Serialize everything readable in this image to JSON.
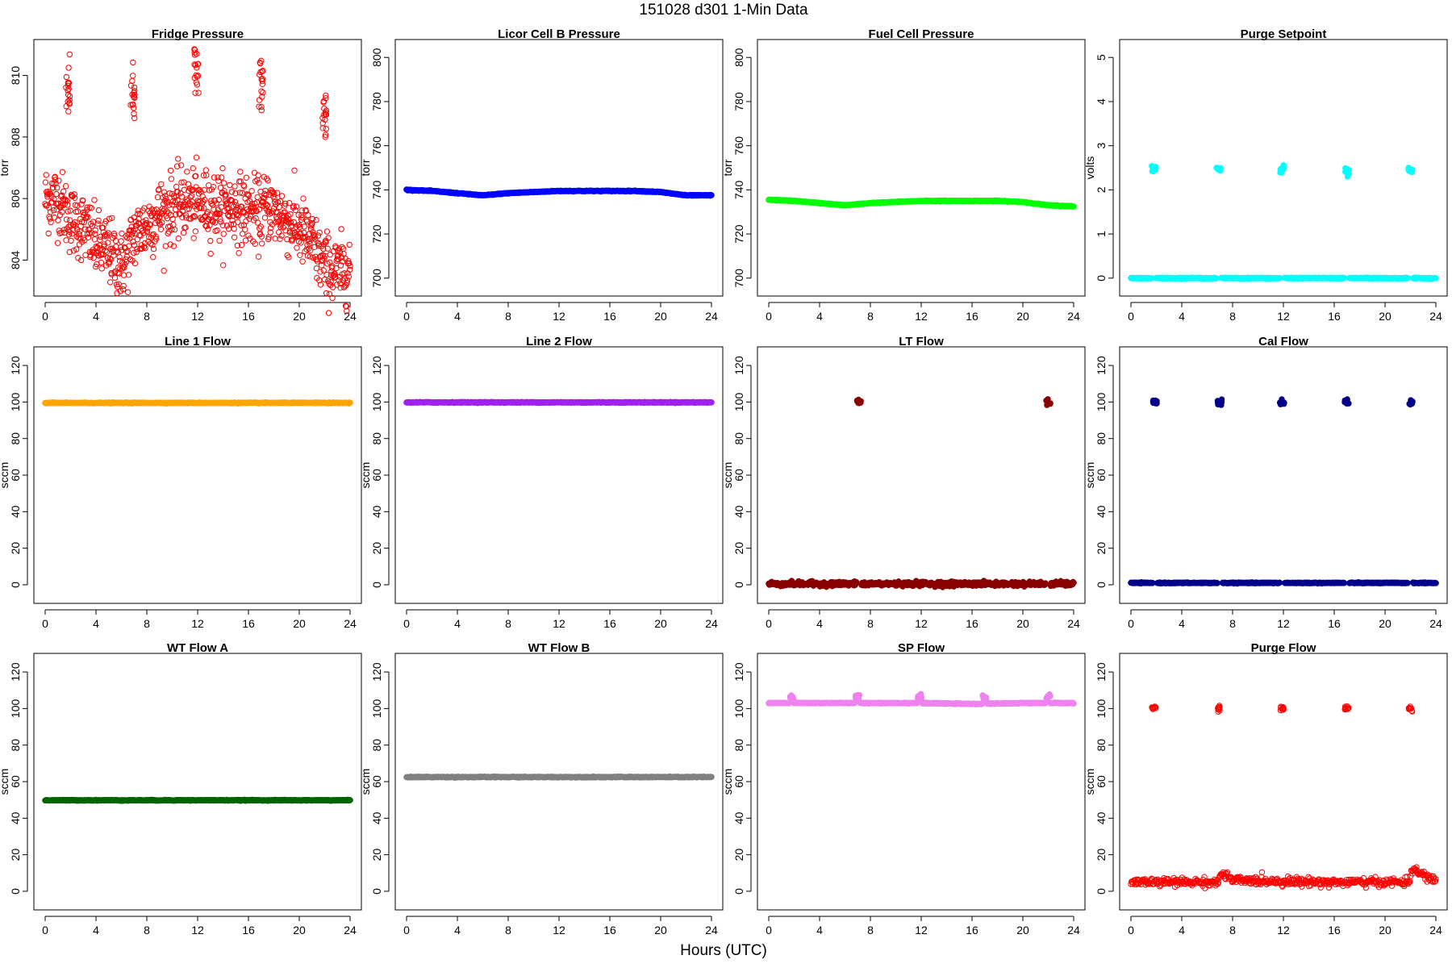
{
  "figure": {
    "title": "151028   d301   1-Min Data",
    "xlabel": "Hours (UTC)"
  },
  "chart_data": [
    {
      "type": "scatter",
      "title": "Fridge Pressure",
      "ylabel": "torr",
      "xlim": [
        0,
        24
      ],
      "ylim": [
        803.2,
        810.8
      ],
      "xticks": [
        0,
        4,
        8,
        12,
        16,
        20,
        24
      ],
      "yticks": [
        804,
        806,
        808,
        810
      ],
      "color": "#ff0000",
      "marker": "open-circle",
      "series": [
        {
          "x": [
            0,
            1,
            2,
            3,
            4,
            5,
            6,
            6.5,
            7,
            8,
            9,
            10,
            11,
            12,
            13,
            14,
            15,
            16,
            17,
            17.5,
            18,
            19,
            20,
            21,
            22,
            23,
            24
          ],
          "y": [
            806.0,
            806.0,
            805.3,
            805.1,
            804.5,
            804.3,
            803.8,
            804.2,
            804.8,
            805.1,
            805.5,
            805.7,
            805.9,
            805.8,
            805.8,
            805.7,
            805.7,
            805.6,
            805.5,
            805.8,
            805.6,
            805.3,
            805.0,
            804.5,
            803.8,
            803.6,
            803.8
          ]
        },
        {
          "x": [
            1.8,
            6.9,
            11.9,
            17.0,
            22.0
          ],
          "y": [
            809.6,
            809.3,
            810.1,
            809.8,
            808.6
          ]
        }
      ]
    },
    {
      "type": "scatter",
      "title": "Licor Cell B Pressure",
      "ylabel": "torr",
      "xlim": [
        0,
        24
      ],
      "ylim": [
        697,
        803
      ],
      "xticks": [
        0,
        4,
        8,
        12,
        16,
        20,
        24
      ],
      "yticks": [
        700,
        720,
        740,
        760,
        780,
        800
      ],
      "color": "#0000ff",
      "marker": "filled-circle",
      "series": [
        {
          "x": [
            0,
            2,
            4,
            6,
            8,
            10,
            12,
            14,
            16,
            18,
            20,
            22,
            24
          ],
          "y": [
            740,
            739.5,
            738.5,
            737.5,
            738.5,
            739,
            739.5,
            739.5,
            739.5,
            739.5,
            739,
            737.5,
            737.5
          ]
        }
      ]
    },
    {
      "type": "scatter",
      "title": "Fuel Cell Pressure",
      "ylabel": "torr",
      "xlim": [
        0,
        24
      ],
      "ylim": [
        697,
        803
      ],
      "xticks": [
        0,
        4,
        8,
        12,
        16,
        20,
        24
      ],
      "yticks": [
        700,
        720,
        740,
        760,
        780,
        800
      ],
      "color": "#00ff00",
      "marker": "filled-circle",
      "series": [
        {
          "x": [
            0,
            2,
            4,
            6,
            8,
            10,
            12,
            14,
            16,
            18,
            20,
            22,
            24
          ],
          "y": [
            735.5,
            735,
            734,
            733,
            734,
            734.5,
            735,
            735,
            735,
            735,
            734.5,
            733,
            732.5
          ]
        }
      ]
    },
    {
      "type": "scatter",
      "title": "Purge Setpoint",
      "ylabel": "volts",
      "xlim": [
        0,
        24
      ],
      "ylim": [
        -0.15,
        5.15
      ],
      "xticks": [
        0,
        4,
        8,
        12,
        16,
        20,
        24
      ],
      "yticks": [
        0,
        1,
        2,
        3,
        4,
        5
      ],
      "color": "#00ffff",
      "marker": "filled-circle",
      "series": [
        {
          "x": [
            0,
            4,
            8,
            12,
            16,
            20,
            24
          ],
          "y": [
            0,
            0,
            0,
            0,
            0,
            0,
            0
          ]
        },
        {
          "x": [
            1.8,
            6.9,
            11.9,
            17.0,
            22.0
          ],
          "y": [
            2.45,
            2.45,
            2.45,
            2.4,
            2.45
          ]
        }
      ]
    },
    {
      "type": "scatter",
      "title": "Line 1 Flow",
      "ylabel": "sccm",
      "xlim": [
        0,
        24
      ],
      "ylim": [
        -4,
        124
      ],
      "xticks": [
        0,
        4,
        8,
        12,
        16,
        20,
        24
      ],
      "yticks": [
        0,
        20,
        40,
        60,
        80,
        100,
        120
      ],
      "color": "#ffa500",
      "marker": "filled-circle",
      "series": [
        {
          "x": [
            0,
            4,
            8,
            12,
            16,
            20,
            24
          ],
          "y": [
            99.5,
            99.5,
            99.5,
            99.5,
            99.5,
            99.5,
            99.5
          ]
        }
      ]
    },
    {
      "type": "scatter",
      "title": "Line 2 Flow",
      "ylabel": "sccm",
      "xlim": [
        0,
        24
      ],
      "ylim": [
        -4,
        124
      ],
      "xticks": [
        0,
        4,
        8,
        12,
        16,
        20,
        24
      ],
      "yticks": [
        0,
        20,
        40,
        60,
        80,
        100,
        120
      ],
      "color": "#a020f0",
      "marker": "filled-circle",
      "series": [
        {
          "x": [
            0,
            4,
            8,
            12,
            16,
            20,
            24
          ],
          "y": [
            99.8,
            99.8,
            99.8,
            99.8,
            99.8,
            99.8,
            99.8
          ]
        }
      ]
    },
    {
      "type": "scatter",
      "title": "LT Flow",
      "ylabel": "sccm",
      "xlim": [
        0,
        24
      ],
      "ylim": [
        -4,
        124
      ],
      "xticks": [
        0,
        4,
        8,
        12,
        16,
        20,
        24
      ],
      "yticks": [
        0,
        20,
        40,
        60,
        80,
        100,
        120
      ],
      "color": "#8b0000",
      "marker": "filled-circle",
      "series": [
        {
          "x": [
            0,
            4,
            8,
            12,
            16,
            20,
            24
          ],
          "y": [
            0.5,
            0.5,
            0.5,
            0.5,
            0.5,
            0.5,
            0.5
          ]
        },
        {
          "x": [
            7.1,
            22.0
          ],
          "y": [
            100,
            100
          ]
        }
      ]
    },
    {
      "type": "scatter",
      "title": "Cal Flow",
      "ylabel": "sccm",
      "xlim": [
        0,
        24
      ],
      "ylim": [
        -4,
        124
      ],
      "xticks": [
        0,
        4,
        8,
        12,
        16,
        20,
        24
      ],
      "yticks": [
        0,
        20,
        40,
        60,
        80,
        100,
        120
      ],
      "color": "#00008b",
      "marker": "filled-circle",
      "series": [
        {
          "x": [
            0,
            4,
            8,
            12,
            16,
            20,
            24
          ],
          "y": [
            1,
            1,
            1,
            1,
            1,
            1,
            1
          ]
        },
        {
          "x": [
            1.9,
            7.0,
            11.9,
            17.0,
            22.0
          ],
          "y": [
            99.8,
            99.8,
            99.8,
            99.8,
            99.8
          ]
        }
      ]
    },
    {
      "type": "scatter",
      "title": "WT Flow A",
      "ylabel": "sccm",
      "xlim": [
        0,
        24
      ],
      "ylim": [
        -4,
        124
      ],
      "xticks": [
        0,
        4,
        8,
        12,
        16,
        20,
        24
      ],
      "yticks": [
        0,
        20,
        40,
        60,
        80,
        100,
        120
      ],
      "color": "#006400",
      "marker": "filled-circle",
      "series": [
        {
          "x": [
            0,
            4,
            8,
            12,
            16,
            20,
            24
          ],
          "y": [
            49.8,
            49.8,
            49.8,
            49.8,
            49.8,
            49.8,
            49.8
          ]
        }
      ]
    },
    {
      "type": "scatter",
      "title": "WT Flow B",
      "ylabel": "sccm",
      "xlim": [
        0,
        24
      ],
      "ylim": [
        -4,
        124
      ],
      "xticks": [
        0,
        4,
        8,
        12,
        16,
        20,
        24
      ],
      "yticks": [
        0,
        20,
        40,
        60,
        80,
        100,
        120
      ],
      "color": "#808080",
      "marker": "filled-circle",
      "series": [
        {
          "x": [
            0,
            4,
            8,
            12,
            16,
            20,
            24
          ],
          "y": [
            62.5,
            62.5,
            62.5,
            62.5,
            62.5,
            62.5,
            62.5
          ]
        }
      ]
    },
    {
      "type": "scatter",
      "title": "SP Flow",
      "ylabel": "sccm",
      "xlim": [
        0,
        24
      ],
      "ylim": [
        -4,
        124
      ],
      "xticks": [
        0,
        4,
        8,
        12,
        16,
        20,
        24
      ],
      "yticks": [
        0,
        20,
        40,
        60,
        80,
        100,
        120
      ],
      "color": "#ee82ee",
      "marker": "filled-circle",
      "series": [
        {
          "x": [
            0,
            4,
            8,
            12,
            16,
            20,
            24
          ],
          "y": [
            103,
            103,
            103,
            103,
            102.5,
            103,
            103
          ]
        },
        {
          "x": [
            1.8,
            7.0,
            11.9,
            17.0,
            22.0
          ],
          "y": [
            106,
            106,
            106,
            106,
            106
          ]
        }
      ]
    },
    {
      "type": "scatter",
      "title": "Purge Flow",
      "ylabel": "sccm",
      "xlim": [
        0,
        24
      ],
      "ylim": [
        -4,
        124
      ],
      "xticks": [
        0,
        4,
        8,
        12,
        16,
        20,
        24
      ],
      "yticks": [
        0,
        20,
        40,
        60,
        80,
        100,
        120
      ],
      "color": "#ff0000",
      "marker": "open-circle",
      "series": [
        {
          "x": [
            0,
            4,
            6.9,
            7.1,
            8,
            12,
            16,
            20,
            21.9,
            22.1,
            24
          ],
          "y": [
            5,
            5,
            5,
            10,
            6,
            5.5,
            5,
            5,
            5,
            12,
            5.5
          ]
        },
        {
          "x": [
            1.8,
            7.0,
            11.9,
            17.0,
            22.0
          ],
          "y": [
            100,
            100,
            100,
            100,
            100
          ]
        }
      ]
    }
  ]
}
